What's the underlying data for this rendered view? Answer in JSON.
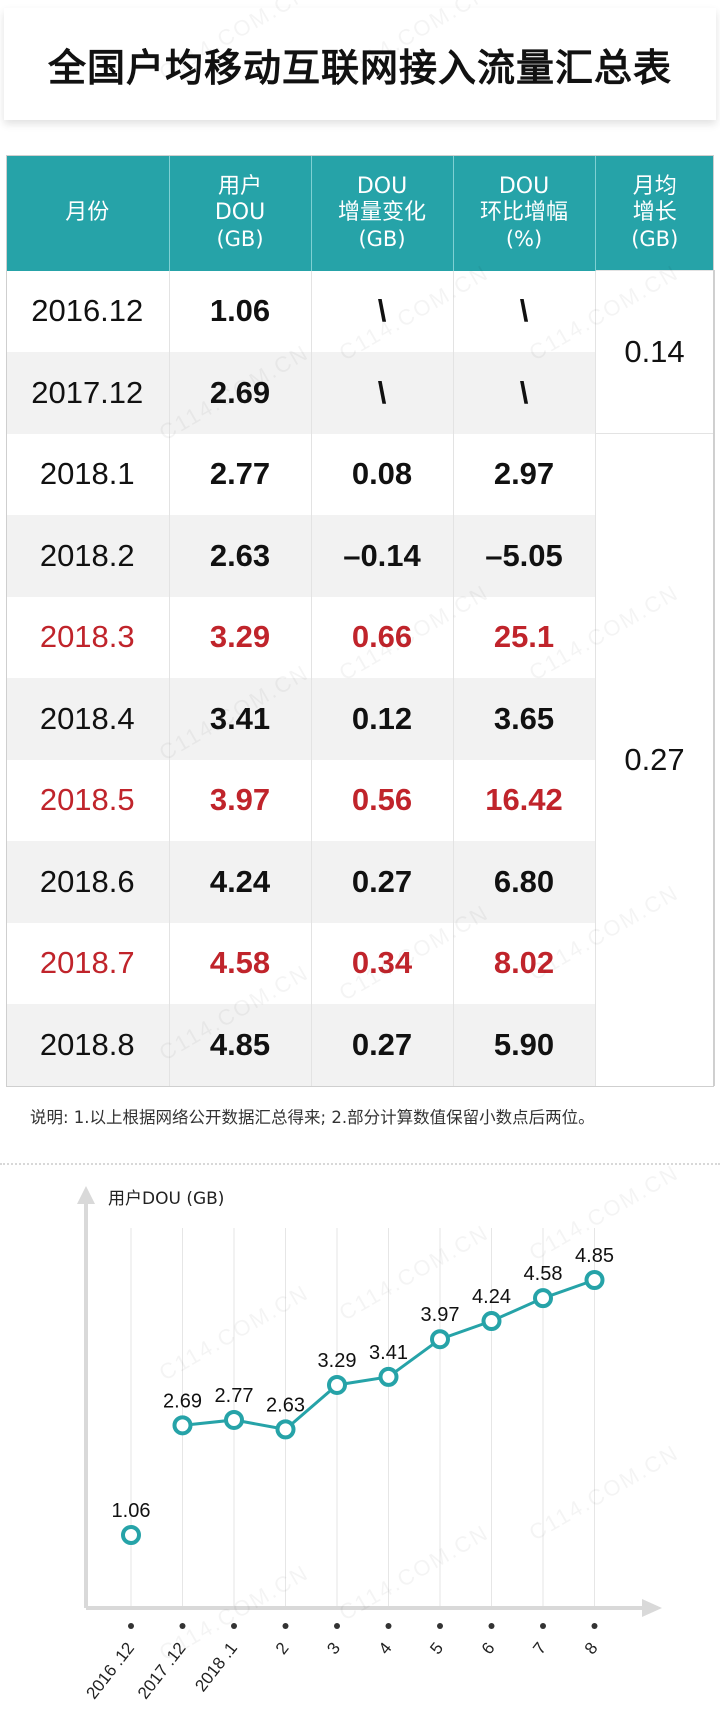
{
  "title": "全国户均移动互联网接入流量汇总表",
  "table": {
    "headers": [
      {
        "lines": [
          "月份"
        ]
      },
      {
        "lines": [
          "用户",
          "DOU"
        ],
        "unit": "(GB)"
      },
      {
        "lines": [
          "DOU",
          "增量变化"
        ],
        "unit": "(GB)"
      },
      {
        "lines": [
          "DOU",
          "环比增幅"
        ],
        "unit": "(%)"
      },
      {
        "lines": [
          "月均",
          "增长"
        ],
        "unit": "(GB)"
      }
    ],
    "rows": [
      {
        "month": "2016.12",
        "dou": "1.06",
        "delta": "\\",
        "pct": "\\",
        "highlight": false
      },
      {
        "month": "2017.12",
        "dou": "2.69",
        "delta": "\\",
        "pct": "\\",
        "highlight": false
      },
      {
        "month": "2018.1",
        "dou": "2.77",
        "delta": "0.08",
        "pct": "2.97",
        "highlight": false
      },
      {
        "month": "2018.2",
        "dou": "2.63",
        "delta": "–0.14",
        "pct": "–5.05",
        "highlight": false
      },
      {
        "month": "2018.3",
        "dou": "3.29",
        "delta": "0.66",
        "pct": "25.1",
        "highlight": true
      },
      {
        "month": "2018.4",
        "dou": "3.41",
        "delta": "0.12",
        "pct": "3.65",
        "highlight": false
      },
      {
        "month": "2018.5",
        "dou": "3.97",
        "delta": "0.56",
        "pct": "16.42",
        "highlight": true
      },
      {
        "month": "2018.6",
        "dou": "4.24",
        "delta": "0.27",
        "pct": "6.80",
        "highlight": false
      },
      {
        "month": "2018.7",
        "dou": "4.58",
        "delta": "0.34",
        "pct": "8.02",
        "highlight": true
      },
      {
        "month": "2018.8",
        "dou": "4.85",
        "delta": "0.27",
        "pct": "5.90",
        "highlight": false
      }
    ],
    "monthly_avg": [
      {
        "value": "0.14",
        "rowspan": 2
      },
      {
        "value": "0.27",
        "rowspan": 8
      }
    ]
  },
  "note": "说明: 1.以上根据网络公开数据汇总得来; 2.部分计算数值保留小数点后两位。",
  "watermark": "C114.COM.CN",
  "colors": {
    "accent": "#26a3a8",
    "highlight": "#c0242b",
    "axis": "#d9d9d9"
  },
  "chart_data": {
    "type": "line",
    "ylabel": "用户DOU (GB)",
    "xlabel": "",
    "categories": [
      "2016 .12",
      "2017 .12",
      "2018 .1",
      "2",
      "3",
      "4",
      "5",
      "6",
      "7",
      "8"
    ],
    "series": [
      {
        "values": [
          1.06,
          2.69,
          2.77,
          2.63,
          3.29,
          3.41,
          3.97,
          4.24,
          4.58,
          4.85
        ]
      }
    ],
    "data_labels": [
      "1.06",
      "2.69",
      "2.77",
      "2.63",
      "3.29",
      "3.41",
      "3.97",
      "4.24",
      "4.58",
      "4.85"
    ],
    "grid": "vertical",
    "color": "#26a3a8"
  }
}
